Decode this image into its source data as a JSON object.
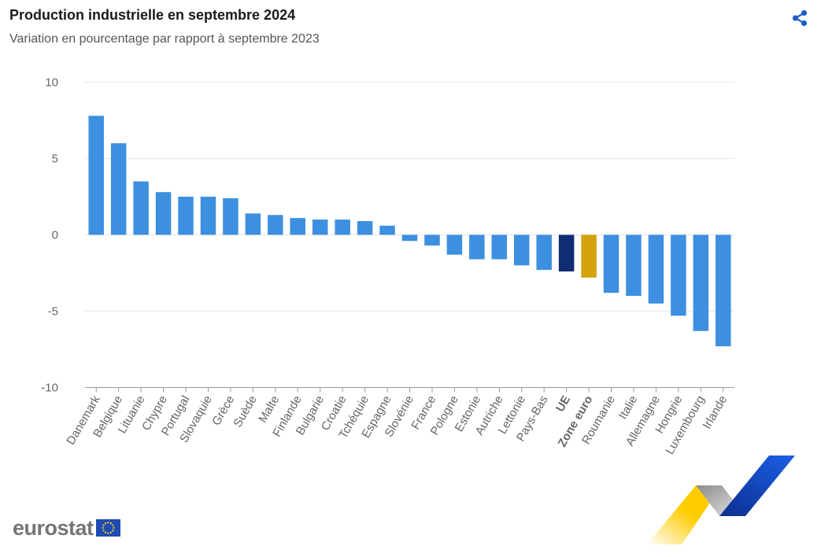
{
  "header": {
    "title": "Production industrielle en septembre 2024",
    "subtitle": "Variation en pourcentage par rapport à septembre 2023"
  },
  "toolbar": {
    "share_icon": "share-icon"
  },
  "branding": {
    "text": "eurostat",
    "flag_icon": "eu-flag-icon"
  },
  "colors": {
    "default_bar": "#3d8fe0",
    "eu_bar": "#0e2d74",
    "euro_area_bar": "#d4a20b",
    "grid": "#e6e6e6",
    "axis_text": "#666666",
    "share": "#1a5fc9",
    "deco_yellow": "#ffcc00",
    "deco_blue": "#1a4fcf",
    "deco_grey": "#a9a9a9"
  },
  "chart_data": {
    "type": "bar",
    "title": "Production industrielle en septembre 2024",
    "subtitle": "Variation en pourcentage par rapport à septembre 2023",
    "xlabel": "",
    "ylabel": "",
    "ylim": [
      -10,
      10
    ],
    "yticks": [
      10,
      5,
      0,
      -5,
      -10
    ],
    "grid": true,
    "categories": [
      "Danemark",
      "Belgique",
      "Lituanie",
      "Chypre",
      "Portugal",
      "Slovaquie",
      "Grèce",
      "Suède",
      "Malte",
      "Finlande",
      "Bulgarie",
      "Croatie",
      "Tchéquie",
      "Espagne",
      "Slovénie",
      "France",
      "Pologne",
      "Estonie",
      "Autriche",
      "Lettonie",
      "Pays-Bas",
      "UE",
      "Zone euro",
      "Roumanie",
      "Italie",
      "Allemagne",
      "Hongrie",
      "Luxembourg",
      "Irlande"
    ],
    "values": [
      7.8,
      6.0,
      3.5,
      2.8,
      2.5,
      2.5,
      2.4,
      1.4,
      1.3,
      1.1,
      1.0,
      1.0,
      0.9,
      0.6,
      -0.4,
      -0.7,
      -1.3,
      -1.6,
      -1.6,
      -2.0,
      -2.3,
      -2.4,
      -2.8,
      -3.8,
      -4.0,
      -4.5,
      -5.3,
      -6.3,
      -7.3
    ],
    "highlight": {
      "UE": "eu_bar",
      "Zone euro": "euro_area_bar"
    },
    "bold_labels": [
      "UE",
      "Zone euro"
    ]
  }
}
